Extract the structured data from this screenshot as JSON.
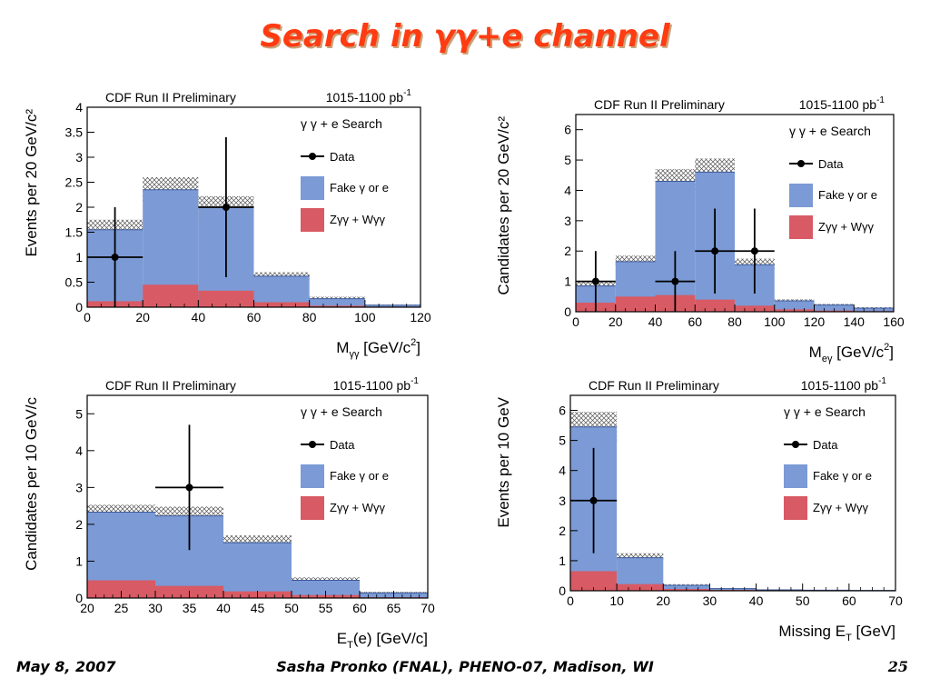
{
  "slide": {
    "title": "Search in γγ+e channel",
    "footer_left": "May 8, 2007",
    "footer_center": "Sasha Pronko (FNAL), PHENO-07, Madison, WI",
    "page_number": "25"
  },
  "colors": {
    "fake": "#7b9ad6",
    "z_w": "#d85a64",
    "title": "#ff3b12"
  },
  "legend": {
    "search": "γ γ + e  Search",
    "data": "Data",
    "fake": "Fake γ or e",
    "zw": "Zγγ + Wγγ"
  },
  "chart_data": [
    {
      "type": "bar",
      "id": "m-gg",
      "header_left": "CDF Run II Preliminary",
      "header_right": "1015-1100 pb",
      "header_right_sup": "-1",
      "xlabel": "M",
      "xlabel_sub": "γγ",
      "xlabel_rest": " [GeV/c",
      "xlabel_sup": "2",
      "xlabel_end": "]",
      "ylabel": "Events per 20 GeV/c²",
      "xlim": [
        0,
        120
      ],
      "ylim": [
        0,
        4
      ],
      "xticks": [
        0,
        20,
        40,
        60,
        80,
        100,
        120
      ],
      "yticks": [
        0,
        0.5,
        1,
        1.5,
        2,
        2.5,
        3,
        3.5,
        4
      ],
      "ytick_labels": [
        "0",
        "0.5",
        "1",
        "1.5",
        "2",
        "2.5",
        "3",
        "3.5",
        "4"
      ],
      "bin_edges": [
        0,
        20,
        40,
        60,
        80,
        100,
        120
      ],
      "series": [
        {
          "name": "Zγγ + Wγγ",
          "values": [
            0.12,
            0.45,
            0.33,
            0.1,
            0.03,
            0.01
          ]
        },
        {
          "name": "Fake γ or e",
          "values": [
            1.43,
            1.9,
            1.67,
            0.52,
            0.14,
            0.03
          ]
        }
      ],
      "uncertainty": [
        0.2,
        0.25,
        0.22,
        0.08,
        0.04,
        0.01
      ],
      "data_points": [
        {
          "x": 10,
          "y": 1,
          "xerr": 10,
          "ylo": 0,
          "yhi": 2
        },
        {
          "x": 50,
          "y": 2,
          "xerr": 10,
          "ylo": 0.6,
          "yhi": 3.4
        }
      ]
    },
    {
      "type": "bar",
      "id": "m-eg",
      "header_left": "CDF Run II Preliminary",
      "header_right": "1015-1100 pb",
      "header_right_sup": "-1",
      "xlabel": "M",
      "xlabel_sub": "eγ",
      "xlabel_rest": " [GeV/c",
      "xlabel_sup": "2",
      "xlabel_end": "]",
      "ylabel": "Candidates per 20 GeV/c²",
      "xlim": [
        0,
        160
      ],
      "ylim": [
        0,
        6.5
      ],
      "xticks": [
        0,
        20,
        40,
        60,
        80,
        100,
        120,
        140,
        160
      ],
      "yticks": [
        0,
        1,
        2,
        3,
        4,
        5,
        6
      ],
      "ytick_labels": [
        "0",
        "1",
        "2",
        "3",
        "4",
        "5",
        "6"
      ],
      "bin_edges": [
        0,
        20,
        40,
        60,
        80,
        100,
        120,
        140,
        160
      ],
      "series": [
        {
          "name": "Zγγ + Wγγ",
          "values": [
            0.3,
            0.5,
            0.55,
            0.4,
            0.2,
            0.08,
            0.04,
            0.02
          ]
        },
        {
          "name": "Fake γ or e",
          "values": [
            0.55,
            1.15,
            3.75,
            4.2,
            1.35,
            0.28,
            0.18,
            0.1
          ]
        }
      ],
      "uncertainty": [
        0.15,
        0.2,
        0.4,
        0.45,
        0.2,
        0.05,
        0.04,
        0.03
      ],
      "data_points": [
        {
          "x": 10,
          "y": 1,
          "xerr": 10,
          "ylo": 0,
          "yhi": 2
        },
        {
          "x": 50,
          "y": 1,
          "xerr": 10,
          "ylo": 0,
          "yhi": 2
        },
        {
          "x": 70,
          "y": 2,
          "xerr": 10,
          "ylo": 0.6,
          "yhi": 3.4
        },
        {
          "x": 90,
          "y": 2,
          "xerr": 10,
          "ylo": 0.6,
          "yhi": 3.4
        }
      ]
    },
    {
      "type": "bar",
      "id": "et-e",
      "header_left": "CDF Run II Preliminary",
      "header_right": "1015-1100 pb",
      "header_right_sup": "-1",
      "xlabel": "E",
      "xlabel_sub": "T",
      "xlabel_rest": "(e) [GeV/c]",
      "xlabel_sup": "",
      "xlabel_end": "",
      "ylabel": "Candidates per 10 GeV/c",
      "xlim": [
        20,
        70
      ],
      "ylim": [
        0,
        5.5
      ],
      "xticks": [
        20,
        25,
        30,
        35,
        40,
        45,
        50,
        55,
        60,
        65,
        70
      ],
      "yticks": [
        0,
        1,
        2,
        3,
        4,
        5
      ],
      "ytick_labels": [
        "0",
        "1",
        "2",
        "3",
        "4",
        "5"
      ],
      "bin_edges": [
        20,
        30,
        40,
        50,
        60,
        70
      ],
      "series": [
        {
          "name": "Zγγ + Wγγ",
          "values": [
            0.48,
            0.33,
            0.18,
            0.08,
            0.02
          ]
        },
        {
          "name": "Fake γ or e",
          "values": [
            1.85,
            1.9,
            1.32,
            0.4,
            0.12
          ]
        }
      ],
      "uncertainty": [
        0.2,
        0.25,
        0.2,
        0.08,
        0.03
      ],
      "data_points": [
        {
          "x": 35,
          "y": 3,
          "xerr": 5,
          "ylo": 1.3,
          "yhi": 4.7
        }
      ]
    },
    {
      "type": "bar",
      "id": "met",
      "header_left": "CDF Run II Preliminary",
      "header_right": "1015-1100 pb",
      "header_right_sup": "-1",
      "xlabel": "Missing E",
      "xlabel_sub": "T",
      "xlabel_rest": " [GeV]",
      "xlabel_sup": "",
      "xlabel_end": "",
      "ylabel": "Events per 10 GeV",
      "xlim": [
        0,
        70
      ],
      "ylim": [
        0,
        6.5
      ],
      "xticks": [
        0,
        10,
        20,
        30,
        40,
        50,
        60,
        70
      ],
      "yticks": [
        0,
        1,
        2,
        3,
        4,
        5,
        6
      ],
      "ytick_labels": [
        "0",
        "1",
        "2",
        "3",
        "4",
        "5",
        "6"
      ],
      "bin_edges": [
        0,
        10,
        20,
        30,
        40,
        50,
        60,
        70
      ],
      "series": [
        {
          "name": "Zγγ + Wγγ",
          "values": [
            0.65,
            0.22,
            0.06,
            0.03,
            0.01,
            0.01,
            0.01
          ]
        },
        {
          "name": "Fake γ or e",
          "values": [
            4.8,
            0.88,
            0.12,
            0.04,
            0.02,
            0.01,
            0.0
          ]
        }
      ],
      "uncertainty": [
        0.5,
        0.15,
        0.04,
        0.01,
        0.01,
        0.0,
        0.0
      ],
      "data_points": [
        {
          "x": 5,
          "y": 3,
          "xerr": 5,
          "ylo": 1.25,
          "yhi": 4.75
        }
      ]
    }
  ]
}
